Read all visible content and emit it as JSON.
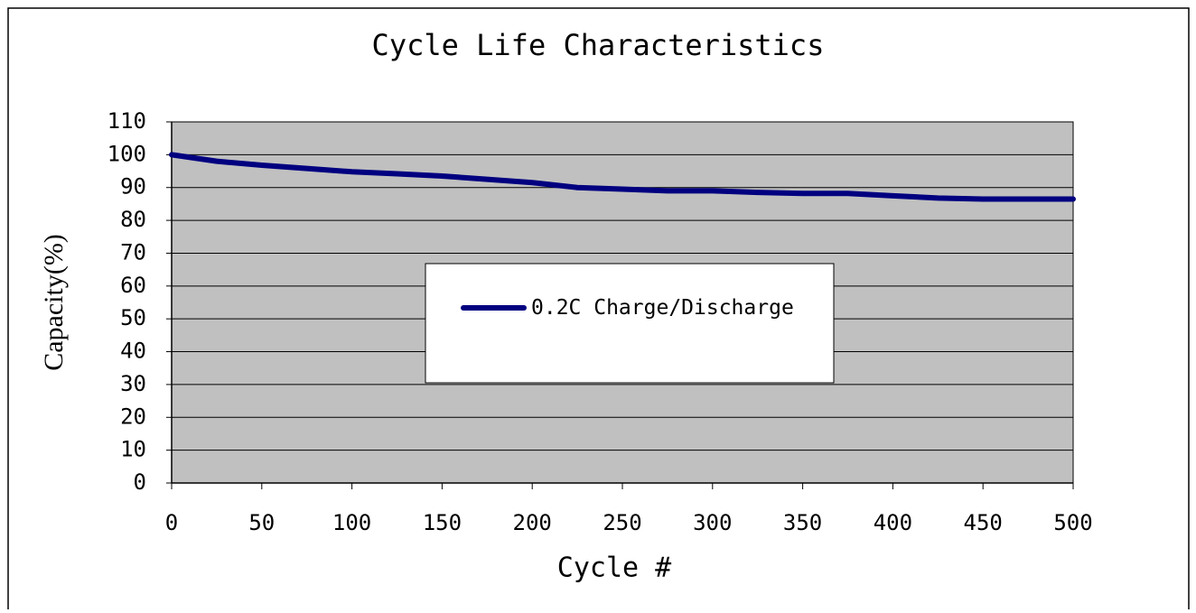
{
  "chart_data": {
    "type": "line",
    "title": "Cycle Life Characteristics",
    "x_label": "Cycle #",
    "y_label": "Capacity(%)",
    "x": [
      0,
      25,
      50,
      75,
      100,
      125,
      150,
      175,
      200,
      225,
      250,
      275,
      300,
      325,
      350,
      375,
      400,
      425,
      450,
      475,
      500
    ],
    "series": [
      {
        "name": "0.2C Charge/Discharge",
        "color": "#000080",
        "values": [
          100,
          98,
          96.8,
          95.8,
          94.8,
          94.2,
          93.5,
          92.5,
          91.5,
          90,
          89.5,
          89,
          89,
          88.5,
          88.2,
          88.2,
          87.5,
          86.8,
          86.5,
          86.5,
          86.5
        ]
      }
    ],
    "xlim": [
      0,
      500
    ],
    "xticks": [
      0,
      50,
      100,
      150,
      200,
      250,
      300,
      350,
      400,
      450,
      500
    ],
    "ylim": [
      0,
      110
    ],
    "yticks": [
      0,
      10,
      20,
      30,
      40,
      50,
      60,
      70,
      80,
      90,
      100,
      110
    ],
    "grid": true,
    "legend": "center",
    "plot_background": "#c0c0c0"
  }
}
